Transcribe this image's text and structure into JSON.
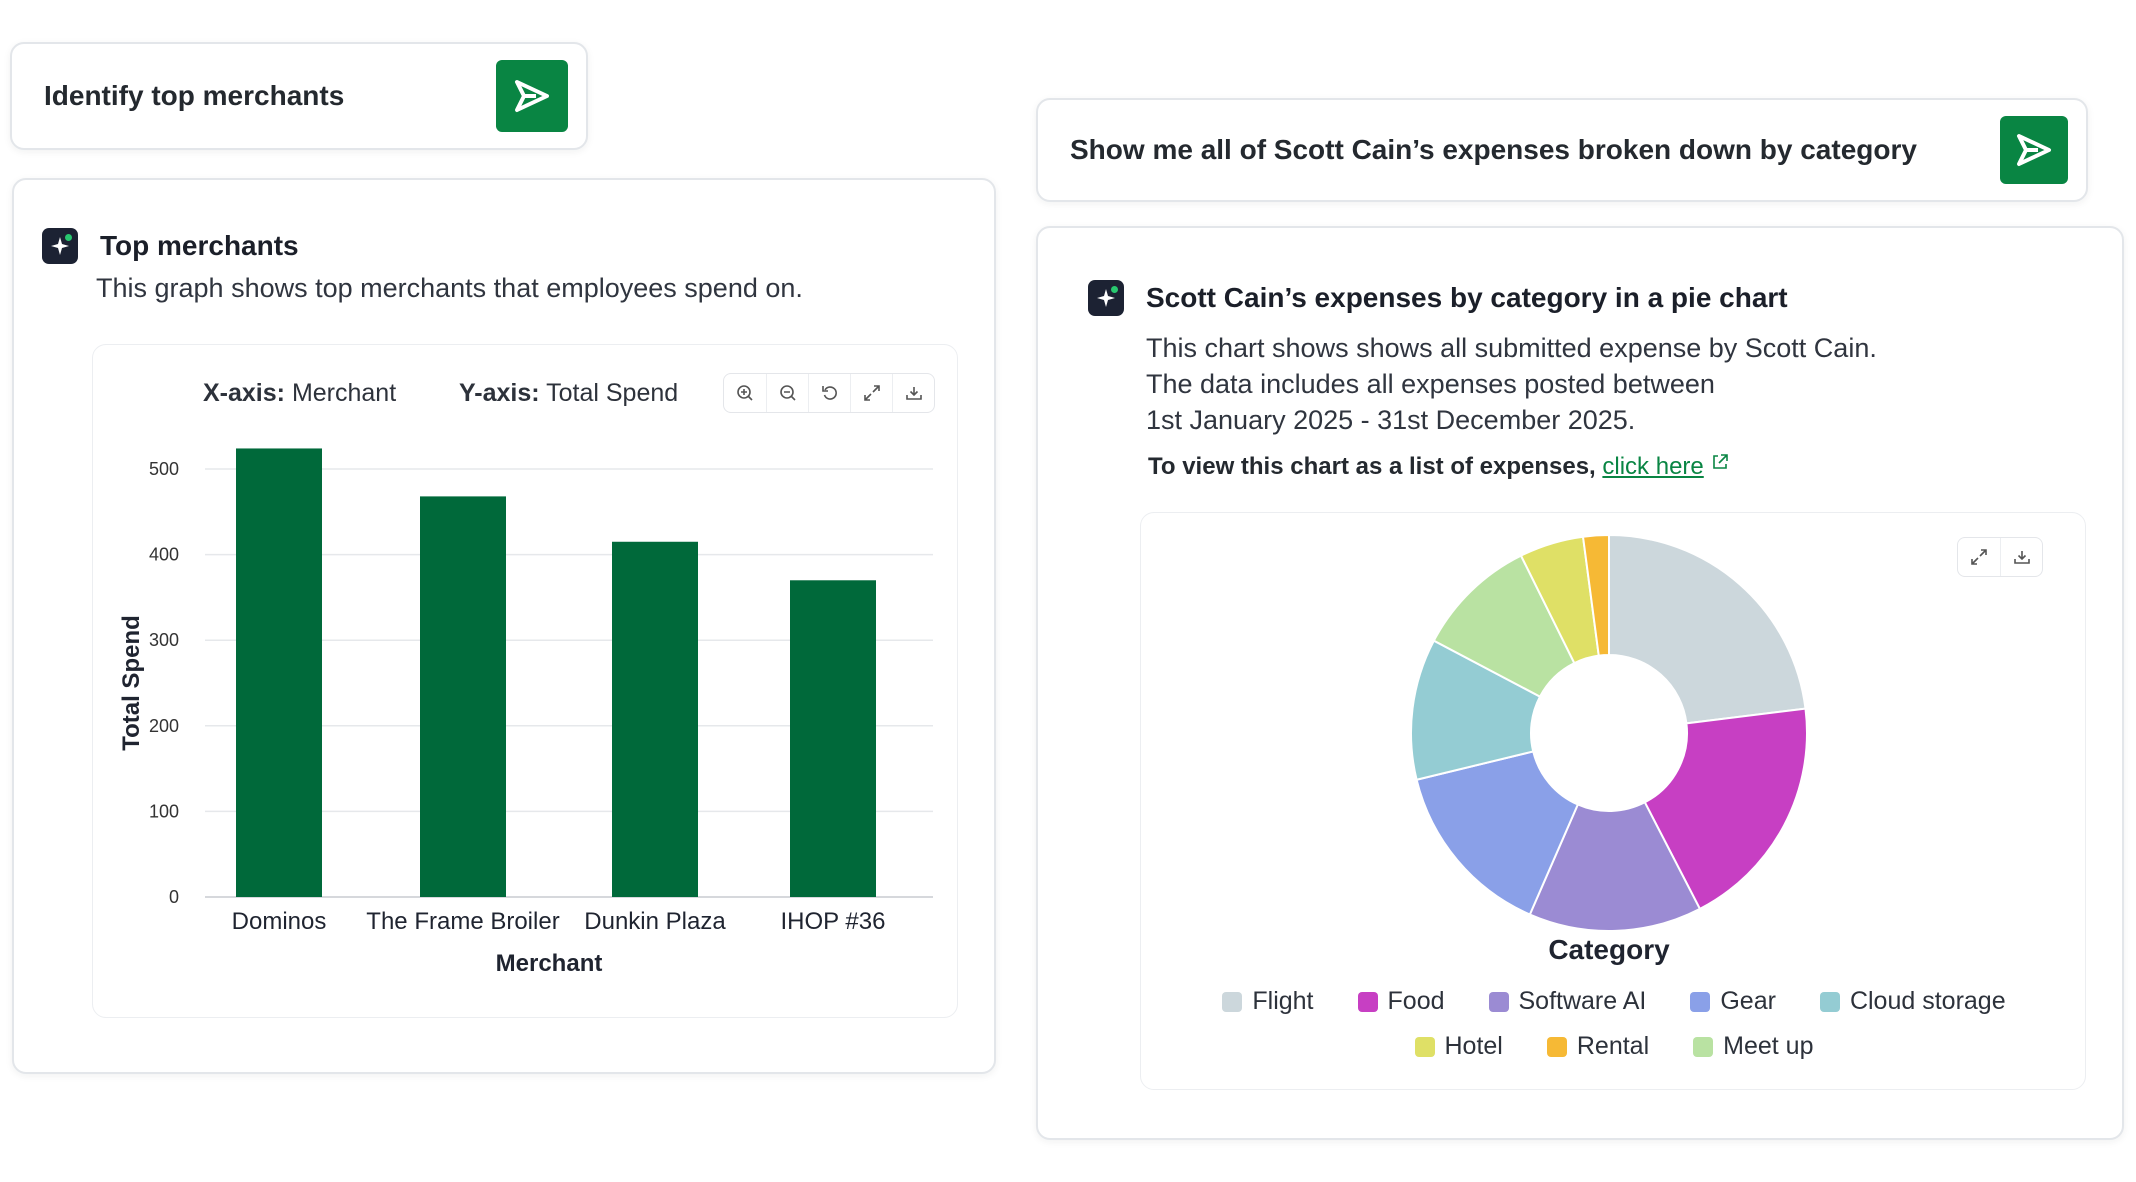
{
  "prompt_left": {
    "text": "Identify top merchants"
  },
  "card_left": {
    "title": "Top merchants",
    "description": "This graph shows top merchants that employees spend on.",
    "axis_x_label": "X-axis:",
    "axis_x_value": "Merchant",
    "axis_y_label": "Y-axis:",
    "axis_y_value": "Total Spend"
  },
  "prompt_right": {
    "text": "Show me all of Scott Cain’s expenses broken down by category"
  },
  "card_right": {
    "title": "Scott Cain’s expenses by category in a pie chart",
    "desc_line1": "This chart shows shows all submitted expense by Scott Cain.",
    "desc_line2": "The data includes all expenses posted between",
    "desc_line3": "1st January 2025 - 31st December 2025.",
    "list_prefix": "To view this chart as a list of expenses,",
    "list_link": "click here"
  },
  "colors": {
    "accent": "#098543",
    "bar": "#00693a"
  },
  "chart_data": [
    {
      "type": "bar",
      "categories": [
        "Dominos",
        "The Frame Broiler",
        "Dunkin Plaza",
        "IHOP #36"
      ],
      "values": [
        524,
        468,
        415,
        370
      ],
      "xlabel": "Merchant",
      "ylabel": "Total Spend",
      "ylim": [
        0,
        500
      ],
      "yticks": [
        0,
        100,
        200,
        300,
        400,
        500
      ],
      "grid": true
    },
    {
      "type": "pie",
      "xlabel": "Category",
      "legend_position": "bottom",
      "slices": [
        {
          "label": "Flight",
          "value": 22,
          "color": "#ccd7dc"
        },
        {
          "label": "Food",
          "value": 18.5,
          "color": "#c73fc3"
        },
        {
          "label": "Software AI",
          "value": 13.5,
          "color": "#9b8bd3"
        },
        {
          "label": "Gear",
          "value": 14,
          "color": "#8aa0e8"
        },
        {
          "label": "Cloud storage",
          "value": 11,
          "color": "#94ccd3"
        },
        {
          "label": "Hotel",
          "value": 5,
          "color": "#dfe066"
        },
        {
          "label": "Rental",
          "value": 2,
          "color": "#f6b935"
        },
        {
          "label": "Meet up",
          "value": 9.5,
          "color": "#b9e2a2"
        }
      ],
      "order": [
        "Flight",
        "Food",
        "Software AI",
        "Gear",
        "Cloud storage",
        "Meet up",
        "Hotel",
        "Rental"
      ]
    }
  ]
}
